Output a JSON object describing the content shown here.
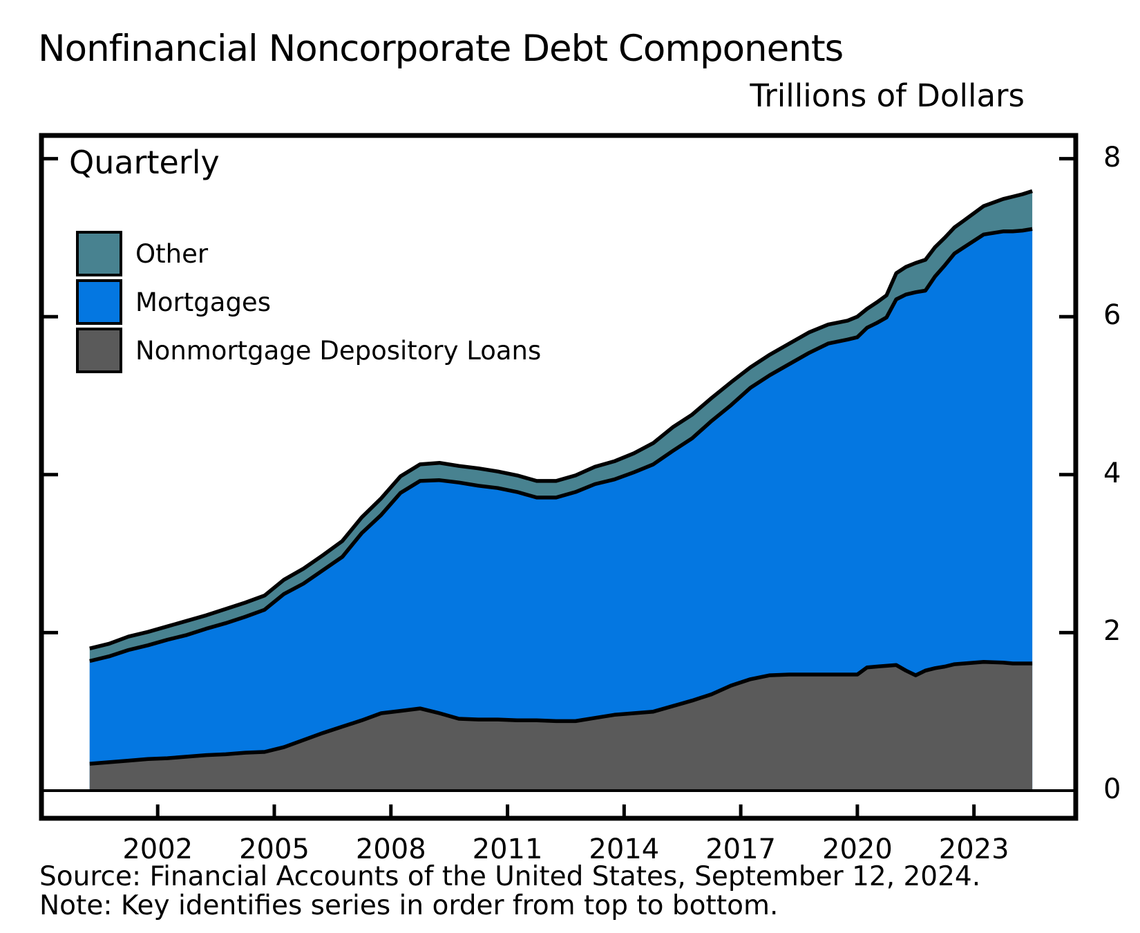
{
  "title": "Nonfinancial Noncorporate Debt Components",
  "units_label": "Trillions of Dollars",
  "frequency_label": "Quarterly",
  "legend": [
    {
      "label": "Other",
      "color": "#488290"
    },
    {
      "label": "Mortgages",
      "color": "#0477e1"
    },
    {
      "label": "Nonmortgage Depository Loans",
      "color": "#5a5a5a"
    }
  ],
  "footer": {
    "source": "Source: Financial Accounts of the United States, September 12, 2024.",
    "note": "Note: Key identifies series in order from top to bottom."
  },
  "chart_data": {
    "type": "area",
    "stacked": true,
    "title": "Nonfinancial Noncorporate Debt Components",
    "ylabel": "Trillions of Dollars",
    "frequency": "Quarterly",
    "x_range": [
      2000.25,
      2024.5
    ],
    "y_range": [
      0,
      8
    ],
    "y_ticks": [
      0,
      2,
      4,
      6,
      8
    ],
    "x_label_ticks": [
      2002,
      2005,
      2008,
      2011,
      2014,
      2017,
      2020,
      2023
    ],
    "grid": false,
    "legend_position": "top-left-inside",
    "x": [
      2000.25,
      2000.75,
      2001.25,
      2001.75,
      2002.25,
      2002.75,
      2003.25,
      2003.75,
      2004.25,
      2004.75,
      2005.25,
      2005.75,
      2006.25,
      2006.75,
      2007.25,
      2007.75,
      2008.25,
      2008.75,
      2009.25,
      2009.75,
      2010.25,
      2010.75,
      2011.25,
      2011.75,
      2012.25,
      2012.75,
      2013.25,
      2013.75,
      2014.25,
      2014.75,
      2015.25,
      2015.75,
      2016.25,
      2016.75,
      2017.25,
      2017.75,
      2018.25,
      2018.75,
      2019.25,
      2019.75,
      2020.0,
      2020.25,
      2020.5,
      2020.75,
      2021.0,
      2021.25,
      2021.5,
      2021.75,
      2022.0,
      2022.25,
      2022.5,
      2022.75,
      2023.25,
      2023.75,
      2024.0,
      2024.25,
      2024.5
    ],
    "series": [
      {
        "name": "Nonmortgage Depository Loans",
        "color": "#5a5a5a",
        "values": [
          0.34,
          0.36,
          0.38,
          0.4,
          0.41,
          0.43,
          0.45,
          0.46,
          0.48,
          0.49,
          0.55,
          0.64,
          0.73,
          0.81,
          0.89,
          0.98,
          1.01,
          1.04,
          0.98,
          0.91,
          0.9,
          0.9,
          0.89,
          0.89,
          0.88,
          0.88,
          0.92,
          0.96,
          0.98,
          1.0,
          1.07,
          1.14,
          1.22,
          1.33,
          1.41,
          1.46,
          1.47,
          1.47,
          1.47,
          1.47,
          1.47,
          1.56,
          1.57,
          1.58,
          1.59,
          1.52,
          1.46,
          1.52,
          1.55,
          1.57,
          1.6,
          1.61,
          1.63,
          1.62,
          1.61,
          1.61,
          1.61
        ]
      },
      {
        "name": "Mortgages",
        "color": "#0477e1",
        "values": [
          1.3,
          1.34,
          1.4,
          1.44,
          1.5,
          1.54,
          1.6,
          1.66,
          1.72,
          1.8,
          1.94,
          1.98,
          2.06,
          2.15,
          2.37,
          2.51,
          2.76,
          2.88,
          2.95,
          2.99,
          2.96,
          2.93,
          2.89,
          2.82,
          2.83,
          2.9,
          2.96,
          2.98,
          3.05,
          3.13,
          3.23,
          3.32,
          3.46,
          3.55,
          3.69,
          3.8,
          3.93,
          4.07,
          4.19,
          4.24,
          4.27,
          4.3,
          4.35,
          4.41,
          4.63,
          4.76,
          4.85,
          4.81,
          4.96,
          5.08,
          5.2,
          5.27,
          5.41,
          5.46,
          5.47,
          5.48,
          5.5
        ]
      },
      {
        "name": "Other",
        "color": "#488290",
        "values": [
          0.16,
          0.16,
          0.17,
          0.17,
          0.17,
          0.18,
          0.17,
          0.18,
          0.18,
          0.18,
          0.18,
          0.19,
          0.19,
          0.2,
          0.2,
          0.21,
          0.21,
          0.21,
          0.22,
          0.21,
          0.22,
          0.21,
          0.21,
          0.21,
          0.21,
          0.21,
          0.22,
          0.23,
          0.24,
          0.27,
          0.3,
          0.3,
          0.29,
          0.29,
          0.26,
          0.26,
          0.26,
          0.26,
          0.24,
          0.24,
          0.26,
          0.24,
          0.26,
          0.28,
          0.33,
          0.35,
          0.37,
          0.39,
          0.37,
          0.35,
          0.33,
          0.34,
          0.36,
          0.41,
          0.44,
          0.46,
          0.48
        ]
      }
    ]
  }
}
